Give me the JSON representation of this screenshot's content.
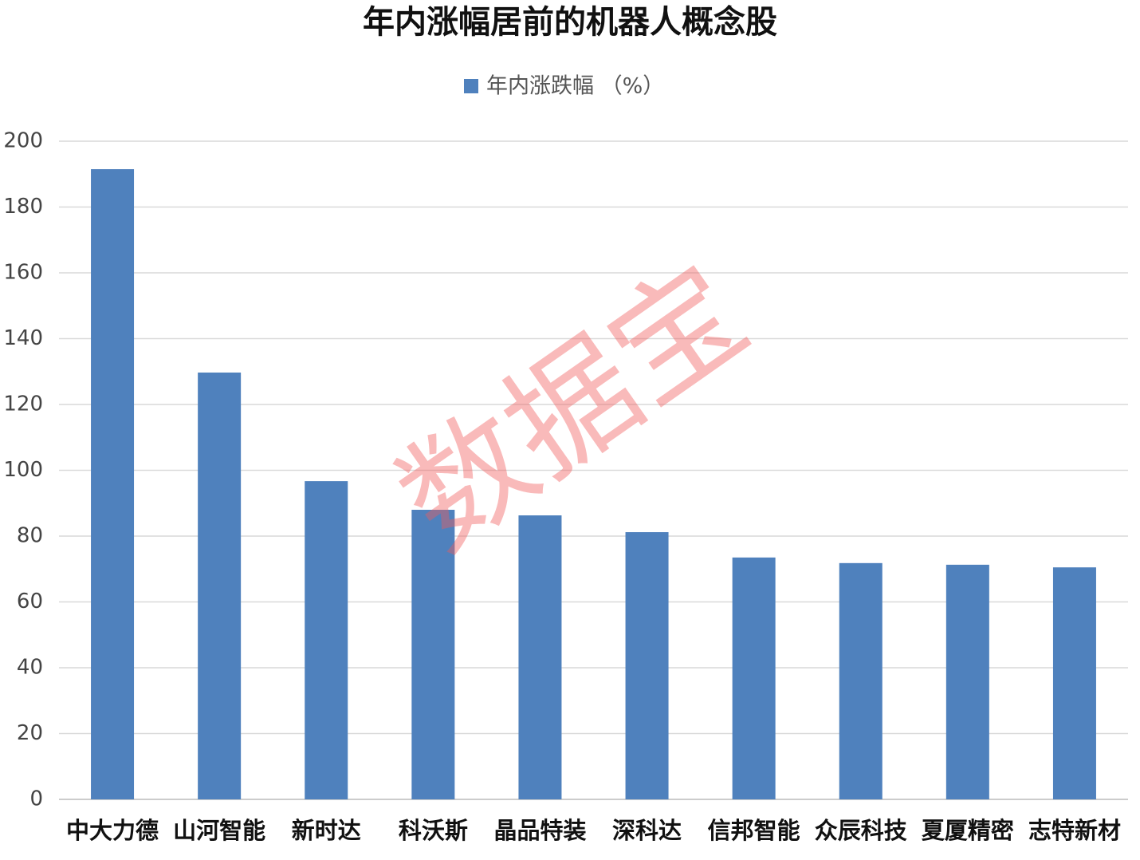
{
  "chart_data": {
    "type": "bar",
    "title": "年内涨幅居前的机器人概念股",
    "categories": [
      "中大力德",
      "山河智能",
      "新时达",
      "科沃斯",
      "晶品特装",
      "深科达",
      "信邦智能",
      "众辰科技",
      "夏厦精密",
      "志特新材"
    ],
    "series": [
      {
        "name": "年内涨跌幅 （%）",
        "color": "#4f81bd",
        "values": [
          191.5,
          129.7,
          96.7,
          88.0,
          86.3,
          81.2,
          73.5,
          71.8,
          71.3,
          70.5
        ]
      }
    ],
    "ylim": [
      0,
      200
    ],
    "yticks": [
      0,
      20,
      40,
      60,
      80,
      100,
      120,
      140,
      160,
      180,
      200
    ],
    "grid": true,
    "legend": "top",
    "watermark": "数据宝"
  }
}
